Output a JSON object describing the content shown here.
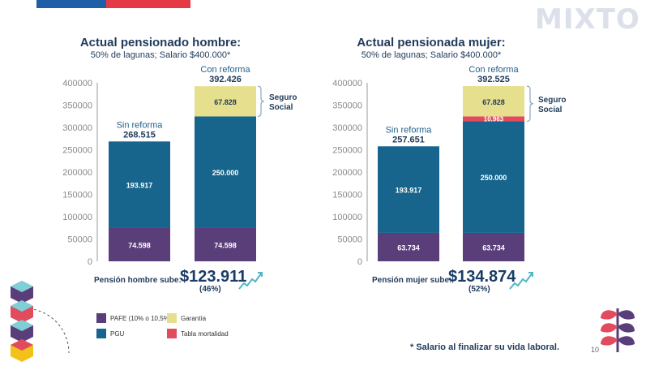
{
  "header": {
    "logo": "MIXTO"
  },
  "colors": {
    "pafe": "#5a3e7a",
    "pgu": "#17658c",
    "garantia": "#e6df8d",
    "tabla": "#e24b5d",
    "navy": "#1f3a5a",
    "axis": "#9a9a9a"
  },
  "chart_data": [
    {
      "type": "bar",
      "stacked": true,
      "title": "Actual pensionado hombre:",
      "subtitle": "50% de lagunas; Salario $400.000*",
      "ylim": [
        0,
        400000
      ],
      "yticks": [
        "400000",
        "350000",
        "300000",
        "250000",
        "200000",
        "150000",
        "100000",
        "50000",
        "0"
      ],
      "bars": [
        {
          "label": "Sin reforma",
          "total": 268515,
          "total_label": "268.515",
          "segments": [
            {
              "series": "PAFE (10% o 10,5%)",
              "value": 74598,
              "label": "74.598"
            },
            {
              "series": "PGU",
              "value": 193917,
              "label": "193.917"
            }
          ]
        },
        {
          "label": "Con reforma",
          "total": 392426,
          "total_label": "392.426",
          "segments": [
            {
              "series": "PAFE (10% o 10,5%)",
              "value": 74598,
              "label": "74.598"
            },
            {
              "series": "PGU",
              "value": 250000,
              "label": "250.000"
            },
            {
              "series": "Garantía",
              "value": 67828,
              "label": "67.828"
            }
          ]
        }
      ],
      "bracket_label": [
        "Seguro",
        "Social"
      ],
      "summary": {
        "label": "Pensión hombre sube:",
        "amount": "$123.911",
        "percent": "(46%)"
      }
    },
    {
      "type": "bar",
      "stacked": true,
      "title": "Actual pensionada mujer:",
      "subtitle": "50% de lagunas; Salario $400.000*",
      "ylim": [
        0,
        400000
      ],
      "yticks": [
        "400000",
        "350000",
        "300000",
        "250000",
        "200000",
        "150000",
        "100000",
        "50000",
        "0"
      ],
      "bars": [
        {
          "label": "Sin reforma",
          "total": 257651,
          "total_label": "257.651",
          "segments": [
            {
              "series": "PAFE (10% o 10,5%)",
              "value": 63734,
              "label": "63.734"
            },
            {
              "series": "PGU",
              "value": 193917,
              "label": "193.917"
            }
          ]
        },
        {
          "label": "Con reforma",
          "total": 392525,
          "total_label": "392.525",
          "segments": [
            {
              "series": "PAFE (10% o 10,5%)",
              "value": 63734,
              "label": "63.734"
            },
            {
              "series": "PGU",
              "value": 250000,
              "label": "250.000"
            },
            {
              "series": "Tabla mortalidad",
              "value": 10963,
              "label": "10.963"
            },
            {
              "series": "Garantía",
              "value": 67828,
              "label": "67.828"
            }
          ]
        }
      ],
      "bracket_label": [
        "Seguro",
        "Social"
      ],
      "summary": {
        "label": "Pensión mujer sube:",
        "amount": "$134.874",
        "percent": "(52%)"
      }
    }
  ],
  "legend": [
    {
      "label": "PAFE (10% o 10,5%)",
      "color": "#5a3e7a"
    },
    {
      "label": "Garantía",
      "color": "#e6df8d"
    },
    {
      "label": "PGU",
      "color": "#17658c"
    },
    {
      "label": "Tabla mortalidad",
      "color": "#e24b5d"
    }
  ],
  "footnote": "* Salario al finalizar su vida laboral.",
  "page_number": "10"
}
